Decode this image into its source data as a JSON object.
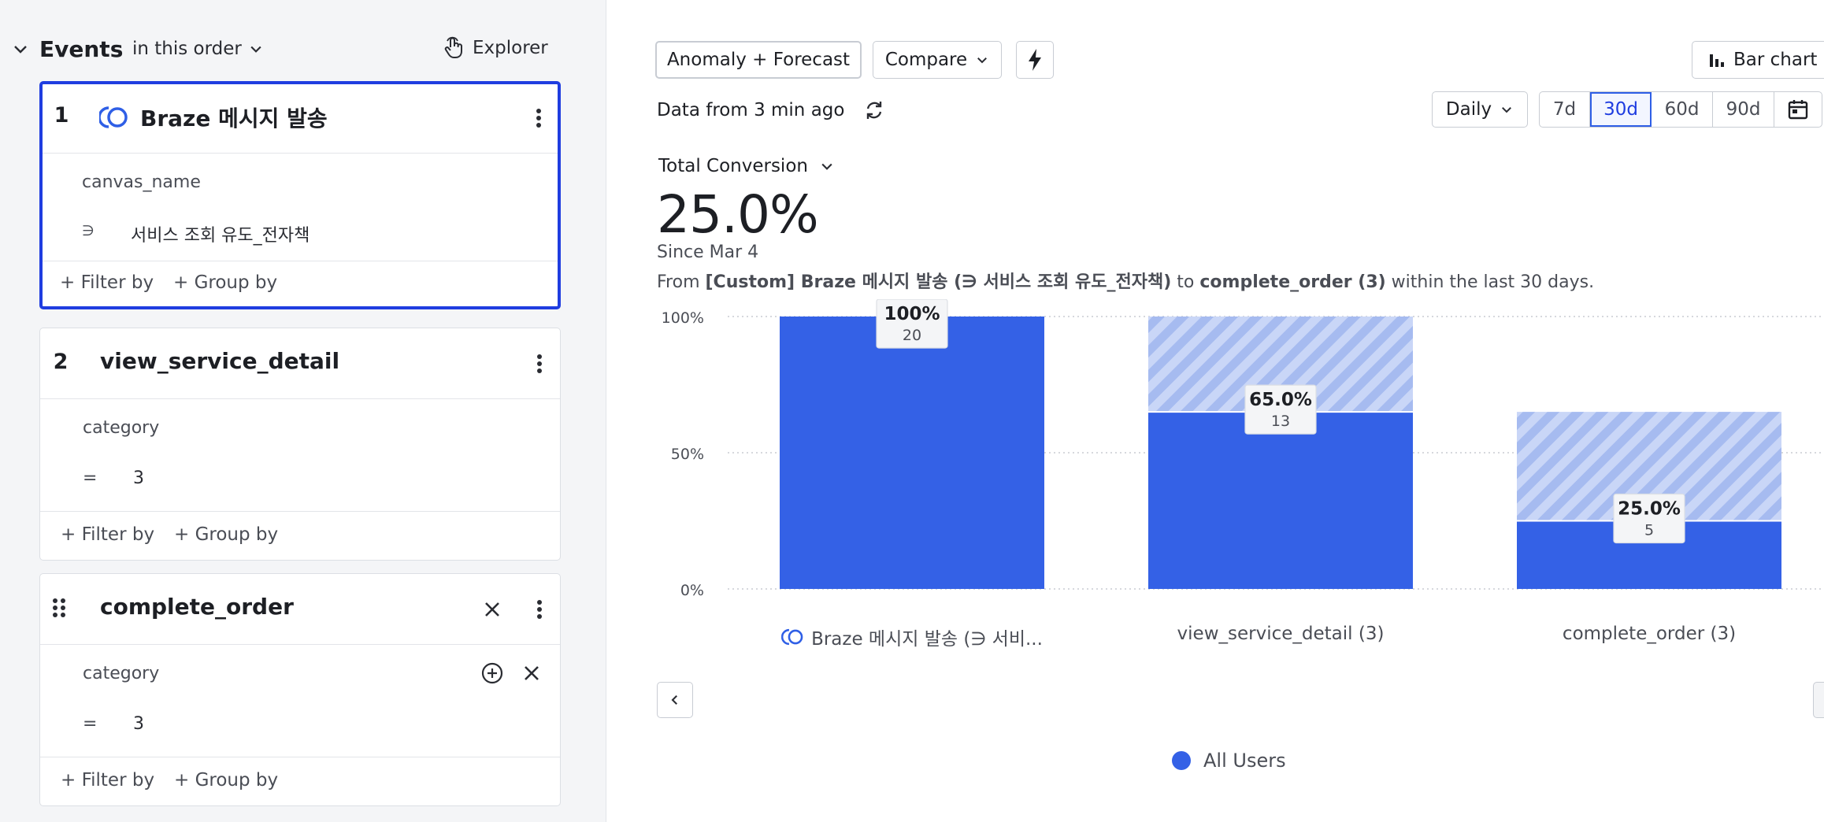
{
  "sidebar": {
    "title": "Events",
    "order_label": "in this order",
    "explorer_label": "Explorer",
    "events": [
      {
        "num": "1",
        "title": "Braze 메시지 발송",
        "prop_name": "canvas_name",
        "prop_op": "∋",
        "prop_value": "서비스 조회 유도_전자책",
        "filter_label": "+ Filter by",
        "group_label": "+ Group by"
      },
      {
        "num": "2",
        "title": "view_service_detail",
        "prop_name": "category",
        "prop_op": "=",
        "prop_value": "3",
        "filter_label": "+ Filter by",
        "group_label": "+ Group by"
      },
      {
        "num": "",
        "title": "complete_order",
        "prop_name": "category",
        "prop_op": "=",
        "prop_value": "3",
        "filter_label": "+ Filter by",
        "group_label": "+ Group by"
      }
    ]
  },
  "toolbar": {
    "anomaly_label": "Anomaly + Forecast",
    "compare_label": "Compare",
    "chart_type_label": "Bar chart",
    "data_from": "Data from 3 min ago",
    "interval_label": "Daily",
    "ranges": [
      "7d",
      "30d",
      "60d",
      "90d"
    ],
    "selected_range": "30d"
  },
  "metric": {
    "label": "Total Conversion",
    "value": "25.0%",
    "since": "Since Mar 4",
    "from_prefix": "From ",
    "from_event": "[Custom] Braze 메시지 발송 (∋ 서비스 조회 유도_전자책)",
    "to_text": " to ",
    "to_event": "complete_order (3)",
    "within": " within the last 30 days."
  },
  "chart_data": {
    "type": "bar",
    "categories": [
      "Braze 메시지 발송 (∋ 서비...",
      "view_service_detail (3)",
      "complete_order (3)"
    ],
    "series": [
      {
        "name": "All Users",
        "values": [
          100,
          65.0,
          25.0
        ],
        "counts": [
          20,
          13,
          5
        ]
      }
    ],
    "dropoff_from_previous": [
      0,
      100,
      65.0
    ],
    "value_labels": [
      "100%",
      "65.0%",
      "25.0%"
    ],
    "count_labels": [
      "20",
      "13",
      "5"
    ],
    "y_ticks": [
      "0%",
      "50%",
      "100%"
    ],
    "ylim": [
      0,
      100
    ],
    "legend": "bottom-center",
    "colors": {
      "bar": "#3461e6",
      "dropoff": "#b9c9f5"
    }
  },
  "legend": {
    "label": "All Users"
  }
}
